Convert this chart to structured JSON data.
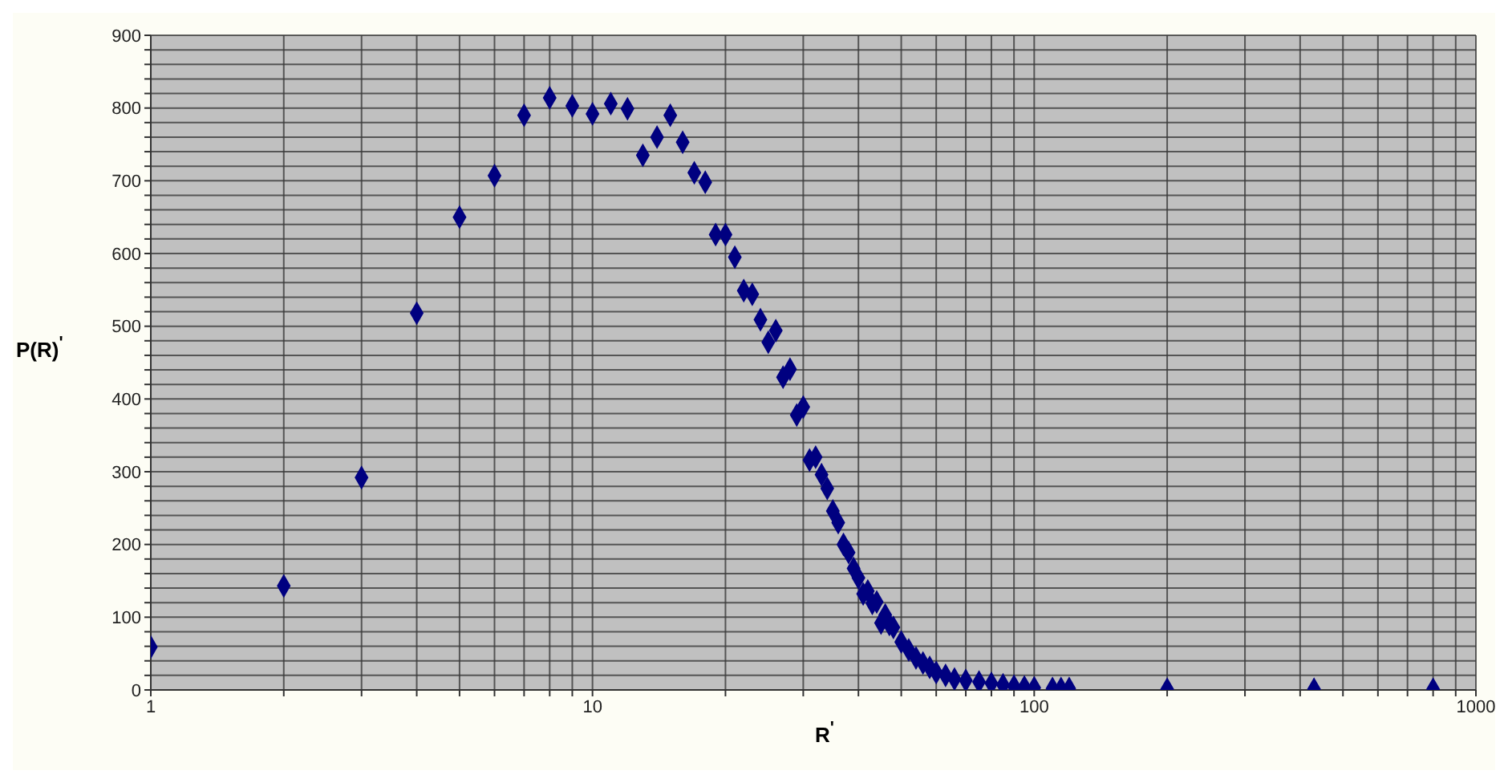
{
  "chart_data": {
    "type": "scatter",
    "xlabel": "R$^{'}$",
    "ylabel": "P(R)$^{'}$",
    "log": "x",
    "grid": true,
    "legend": false,
    "marker": "diamond",
    "xlim": [
      1,
      1000
    ],
    "xticks": [
      1,
      {
        "value": 2,
        "label": null
      },
      {
        "value": 3,
        "label": null
      },
      {
        "value": 4,
        "label": null
      },
      {
        "value": 5,
        "label": null
      },
      {
        "value": 6,
        "label": null
      },
      {
        "value": 7,
        "label": null
      },
      {
        "value": 8,
        "label": null
      },
      {
        "value": 9,
        "label": null
      },
      10,
      {
        "value": 20,
        "label": null
      },
      {
        "value": 30,
        "label": null
      },
      {
        "value": 40,
        "label": null
      },
      {
        "value": 50,
        "label": null
      },
      {
        "value": 60,
        "label": null
      },
      {
        "value": 70,
        "label": null
      },
      {
        "value": 80,
        "label": null
      },
      {
        "value": 90,
        "label": null
      },
      100,
      {
        "value": 200,
        "label": null
      },
      {
        "value": 300,
        "label": null
      },
      {
        "value": 400,
        "label": null
      },
      {
        "value": 500,
        "label": null
      },
      {
        "value": 600,
        "label": null
      },
      {
        "value": 700,
        "label": null
      },
      {
        "value": 800,
        "label": null
      },
      {
        "value": 900,
        "label": null
      },
      1000
    ],
    "ylim": [
      0,
      900
    ],
    "yticks": [
      0,
      {
        "value": 20,
        "label": null
      },
      {
        "value": 40,
        "label": null
      },
      {
        "value": 60,
        "label": null
      },
      {
        "value": 80,
        "label": null
      },
      100,
      {
        "value": 120,
        "label": null
      },
      {
        "value": 140,
        "label": null
      },
      {
        "value": 160,
        "label": null
      },
      {
        "value": 180,
        "label": null
      },
      200,
      {
        "value": 220,
        "label": null
      },
      {
        "value": 240,
        "label": null
      },
      {
        "value": 260,
        "label": null
      },
      {
        "value": 280,
        "label": null
      },
      300,
      {
        "value": 320,
        "label": null
      },
      {
        "value": 340,
        "label": null
      },
      {
        "value": 360,
        "label": null
      },
      {
        "value": 380,
        "label": null
      },
      400,
      {
        "value": 420,
        "label": null
      },
      {
        "value": 440,
        "label": null
      },
      {
        "value": 460,
        "label": null
      },
      {
        "value": 480,
        "label": null
      },
      500,
      {
        "value": 520,
        "label": null
      },
      {
        "value": 540,
        "label": null
      },
      {
        "value": 560,
        "label": null
      },
      {
        "value": 580,
        "label": null
      },
      600,
      {
        "value": 620,
        "label": null
      },
      {
        "value": 640,
        "label": null
      },
      {
        "value": 660,
        "label": null
      },
      {
        "value": 680,
        "label": null
      },
      700,
      {
        "value": 720,
        "label": null
      },
      {
        "value": 740,
        "label": null
      },
      {
        "value": 760,
        "label": null
      },
      {
        "value": 780,
        "label": null
      },
      800,
      {
        "value": 820,
        "label": null
      },
      {
        "value": 840,
        "label": null
      },
      {
        "value": 860,
        "label": null
      },
      {
        "value": 880,
        "label": null
      },
      900
    ],
    "series": [
      {
        "color": "#000080",
        "x": [
          1,
          2,
          3,
          4,
          5,
          6,
          7,
          8,
          9,
          10,
          11,
          12,
          13,
          14,
          15,
          16,
          17,
          18,
          19,
          20,
          21,
          22,
          23,
          24,
          25,
          26,
          27,
          28,
          29,
          30,
          31,
          32,
          33,
          34,
          35,
          36,
          37,
          38,
          39,
          40,
          41,
          42,
          43,
          44,
          45,
          46,
          47,
          48,
          50,
          52,
          54,
          56,
          58,
          60,
          63,
          66,
          70,
          75,
          80,
          85,
          90,
          95,
          100,
          110,
          115,
          120,
          200,
          430,
          800
        ],
        "values": [
          59,
          143,
          292,
          518,
          650,
          707,
          790,
          814,
          803,
          792,
          806,
          799,
          735,
          760,
          790,
          753,
          711,
          698,
          626,
          626,
          595,
          549,
          544,
          509,
          478,
          494,
          430,
          441,
          378,
          389,
          316,
          320,
          296,
          277,
          246,
          230,
          200,
          189,
          167,
          154,
          132,
          136,
          119,
          121,
          92,
          103,
          90,
          86,
          66,
          55,
          44,
          37,
          31,
          24,
          20,
          15,
          13,
          11,
          9,
          7,
          5,
          4,
          3,
          2,
          2,
          2,
          1,
          1,
          1
        ]
      }
    ]
  }
}
